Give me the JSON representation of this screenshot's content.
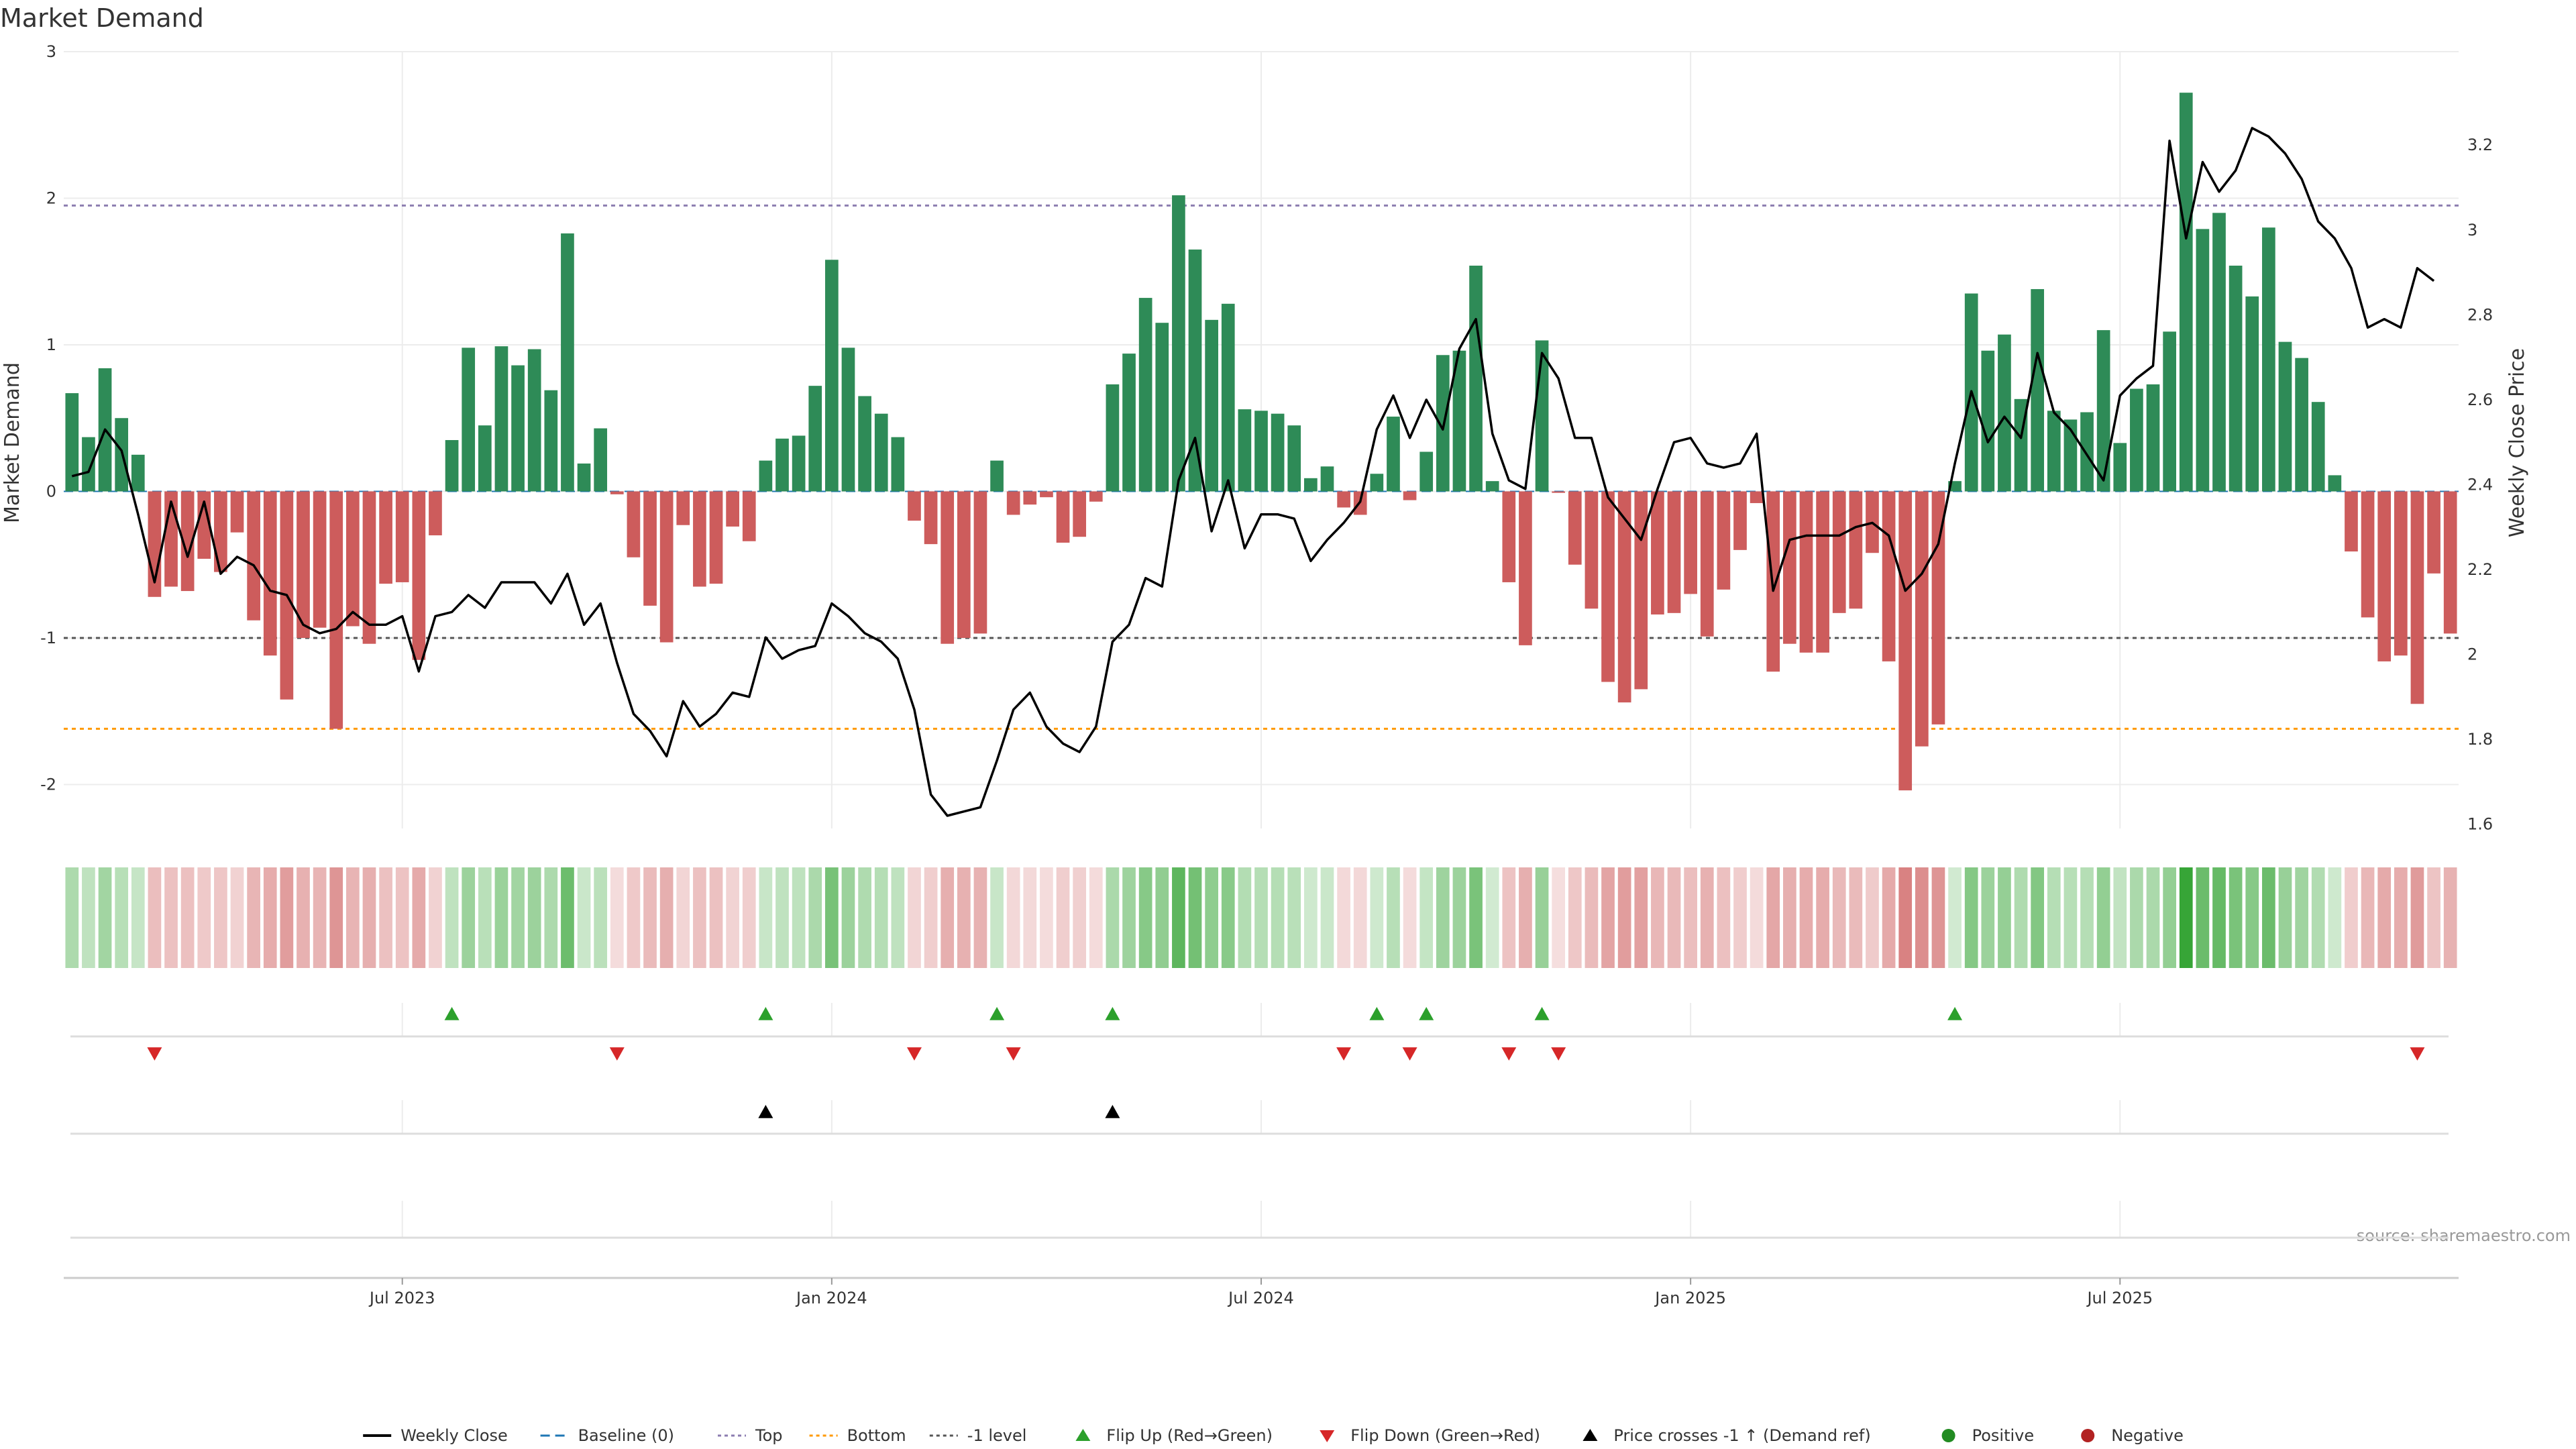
{
  "chart_data": {
    "type": "bar",
    "title": "Market Demand",
    "ylabel": "Market Demand",
    "y2label": "Weekly Close Price",
    "source": "source: sharemaestro.com",
    "ylim": [
      -2.3,
      3.0
    ],
    "y2lim": [
      1.59,
      3.42
    ],
    "yticks": [
      "-2",
      "-1",
      "0",
      "1",
      "2",
      "3"
    ],
    "yticks_values": [
      -2,
      -1,
      0,
      1,
      2,
      3
    ],
    "y2ticks": [
      "1.6",
      "1.8",
      "2",
      "2.2",
      "2.4",
      "2.6",
      "2.8",
      "3",
      "3.2"
    ],
    "y2ticks_values": [
      1.6,
      1.8,
      2.0,
      2.2,
      2.4,
      2.6,
      2.8,
      3.0,
      3.2
    ],
    "xticks": [
      "Jul 2023",
      "Jan 2024",
      "Jul 2024",
      "Jan 2025",
      "Jul 2025"
    ],
    "xticks_index": [
      20,
      46,
      72,
      98,
      124
    ],
    "reference_lines": {
      "baseline": 0,
      "top": 1.95,
      "bottom": -1.62,
      "minus_one_level": -1.0
    },
    "series": [
      {
        "name": "Market Demand",
        "values": [
          0.67,
          0.37,
          0.84,
          0.5,
          0.25,
          -0.72,
          -0.65,
          -0.68,
          -0.46,
          -0.55,
          -0.28,
          -0.88,
          -1.12,
          -1.42,
          -1.0,
          -0.93,
          -1.62,
          -0.92,
          -1.04,
          -0.63,
          -0.62,
          -1.15,
          -0.3,
          0.35,
          0.98,
          0.45,
          0.99,
          0.86,
          0.97,
          0.69,
          1.76,
          0.19,
          0.43,
          -0.02,
          -0.45,
          -0.78,
          -1.03,
          -0.23,
          -0.65,
          -0.63,
          -0.24,
          -0.34,
          0.21,
          0.36,
          0.38,
          0.72,
          1.58,
          0.98,
          0.65,
          0.53,
          0.37,
          -0.2,
          -0.36,
          -1.04,
          -1.0,
          -0.97,
          0.21,
          -0.16,
          -0.09,
          -0.04,
          -0.35,
          -0.31,
          -0.07,
          0.73,
          0.94,
          1.32,
          1.15,
          2.02,
          1.65,
          1.17,
          1.28,
          0.56,
          0.55,
          0.53,
          0.45,
          0.09,
          0.17,
          -0.11,
          -0.16,
          0.12,
          0.51,
          -0.06,
          0.27,
          0.93,
          0.96,
          1.54,
          0.07,
          -0.62,
          -1.05,
          1.03,
          -0.01,
          -0.5,
          -0.8,
          -1.3,
          -1.44,
          -1.35,
          -0.84,
          -0.83,
          -0.7,
          -0.99,
          -0.67,
          -0.4,
          -0.08,
          -1.23,
          -1.04,
          -1.1,
          -1.1,
          -0.83,
          -0.8,
          -0.42,
          -1.16,
          -2.04,
          -1.74,
          -1.59,
          0.07,
          1.35,
          0.96,
          1.07,
          0.63,
          1.38,
          0.55,
          0.49,
          0.54,
          1.1,
          0.33,
          0.7,
          0.73,
          1.09,
          2.72,
          1.79,
          1.9,
          1.54,
          1.33,
          1.8,
          1.02,
          0.91,
          0.61,
          0.11,
          -0.41,
          -0.86,
          -1.16,
          -1.12,
          -1.45,
          -0.56,
          -0.97
        ]
      },
      {
        "name": "Weekly Close",
        "values": [
          2.42,
          2.43,
          2.53,
          2.48,
          2.33,
          2.17,
          2.36,
          2.23,
          2.36,
          2.19,
          2.23,
          2.21,
          2.15,
          2.14,
          2.07,
          2.05,
          2.06,
          2.1,
          2.07,
          2.07,
          2.09,
          1.96,
          2.09,
          2.1,
          2.14,
          2.11,
          2.17,
          2.17,
          2.17,
          2.12,
          2.19,
          2.07,
          2.12,
          1.98,
          1.86,
          1.82,
          1.76,
          1.89,
          1.83,
          1.86,
          1.91,
          1.9,
          2.04,
          1.99,
          2.01,
          2.02,
          2.12,
          2.09,
          2.05,
          2.03,
          1.99,
          1.87,
          1.67,
          1.62,
          1.63,
          1.64,
          1.75,
          1.87,
          1.91,
          1.83,
          1.79,
          1.77,
          1.83,
          2.03,
          2.07,
          2.18,
          2.16,
          2.41,
          2.51,
          2.29,
          2.41,
          2.25,
          2.33,
          2.33,
          2.32,
          2.22,
          2.27,
          2.31,
          2.36,
          2.53,
          2.61,
          2.51,
          2.6,
          2.53,
          2.72,
          2.79,
          2.52,
          2.41,
          2.39,
          2.71,
          2.65,
          2.51,
          2.51,
          2.37,
          2.32,
          2.27,
          2.39,
          2.5,
          2.51,
          2.45,
          2.44,
          2.45,
          2.52,
          2.15,
          2.27,
          2.28,
          2.28,
          2.28,
          2.3,
          2.31,
          2.28,
          2.15,
          2.19,
          2.26,
          2.45,
          2.62,
          2.5,
          2.56,
          2.51,
          2.71,
          2.57,
          2.53,
          2.47,
          2.41,
          2.61,
          2.65,
          2.68,
          3.21,
          2.98,
          3.16,
          3.09,
          3.14,
          3.24,
          3.22,
          3.18,
          3.12,
          3.02,
          2.98,
          2.91,
          2.77,
          2.79,
          2.77,
          2.91,
          2.88
        ]
      }
    ],
    "signals": {
      "flip_up": [
        23,
        42,
        56,
        63,
        79,
        82,
        89,
        114
      ],
      "flip_down": [
        5,
        33,
        51,
        57,
        77,
        81,
        87,
        90,
        142
      ],
      "price_cross_up": [
        42,
        63
      ]
    },
    "colors": {
      "positive": "#2e8b57",
      "negative": "#cd5c5c",
      "price": "#000000",
      "baseline": "#1f77b4",
      "top": "#8c7db0",
      "bottom": "#ff9900",
      "minus_one": "#555555",
      "flip_up": "#2ca02c",
      "flip_down": "#d62728",
      "cross": "#000000",
      "pos_dot": "#228b22",
      "neg_dot": "#b22222"
    },
    "legend": {
      "position": "bottom-center",
      "items": [
        {
          "label": "Weekly Close",
          "kind": "line",
          "color": "#000000"
        },
        {
          "label": "Baseline (0)",
          "kind": "dash",
          "color": "#1f77b4"
        },
        {
          "label": "Top",
          "kind": "dot",
          "color": "#8c7db0"
        },
        {
          "label": "Bottom",
          "kind": "dot",
          "color": "#ff9900"
        },
        {
          "label": "-1 level",
          "kind": "dot",
          "color": "#555555"
        },
        {
          "label": "Flip Up (Red→Green)",
          "kind": "up",
          "color": "#2ca02c"
        },
        {
          "label": "Flip Down (Green→Red)",
          "kind": "down",
          "color": "#d62728"
        },
        {
          "label": "Price crosses -1 ↑ (Demand ref)",
          "kind": "up",
          "color": "#000000"
        },
        {
          "label": "Positive",
          "kind": "circle",
          "color": "#228b22"
        },
        {
          "label": "Negative",
          "kind": "circle",
          "color": "#b22222"
        }
      ]
    }
  }
}
